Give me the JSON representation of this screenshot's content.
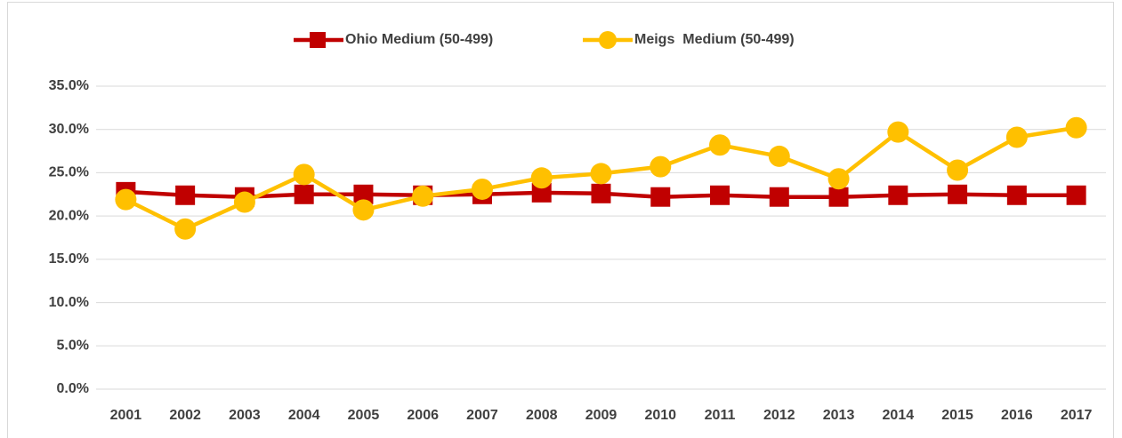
{
  "chart_data": {
    "type": "line",
    "categories": [
      "2001",
      "2002",
      "2003",
      "2004",
      "2005",
      "2006",
      "2007",
      "2008",
      "2009",
      "2010",
      "2011",
      "2012",
      "2013",
      "2014",
      "2015",
      "2016",
      "2017"
    ],
    "series": [
      {
        "name": "Ohio Medium (50-499)",
        "color": "#c00000",
        "marker": "square",
        "values": [
          22.8,
          22.4,
          22.2,
          22.5,
          22.5,
          22.4,
          22.5,
          22.7,
          22.6,
          22.2,
          22.4,
          22.2,
          22.2,
          22.4,
          22.5,
          22.4,
          22.4
        ]
      },
      {
        "name": "Meigs  Medium (50-499)",
        "color": "#ffc000",
        "marker": "circle",
        "values": [
          21.9,
          18.5,
          21.6,
          24.8,
          20.7,
          22.3,
          23.1,
          24.4,
          24.9,
          25.7,
          28.2,
          26.9,
          24.3,
          29.7,
          25.3,
          29.1,
          30.2
        ]
      }
    ],
    "ylim": [
      0,
      35
    ],
    "yticks": [
      {
        "value": 0,
        "label": "0.0%"
      },
      {
        "value": 5,
        "label": "5.0%"
      },
      {
        "value": 10,
        "label": "10.0%"
      },
      {
        "value": 15,
        "label": "15.0%"
      },
      {
        "value": 20,
        "label": "20.0%"
      },
      {
        "value": 25,
        "label": "25.0%"
      },
      {
        "value": 30,
        "label": "30.0%"
      },
      {
        "value": 35,
        "label": "35.0%"
      }
    ],
    "grid": true,
    "legend": "top"
  }
}
